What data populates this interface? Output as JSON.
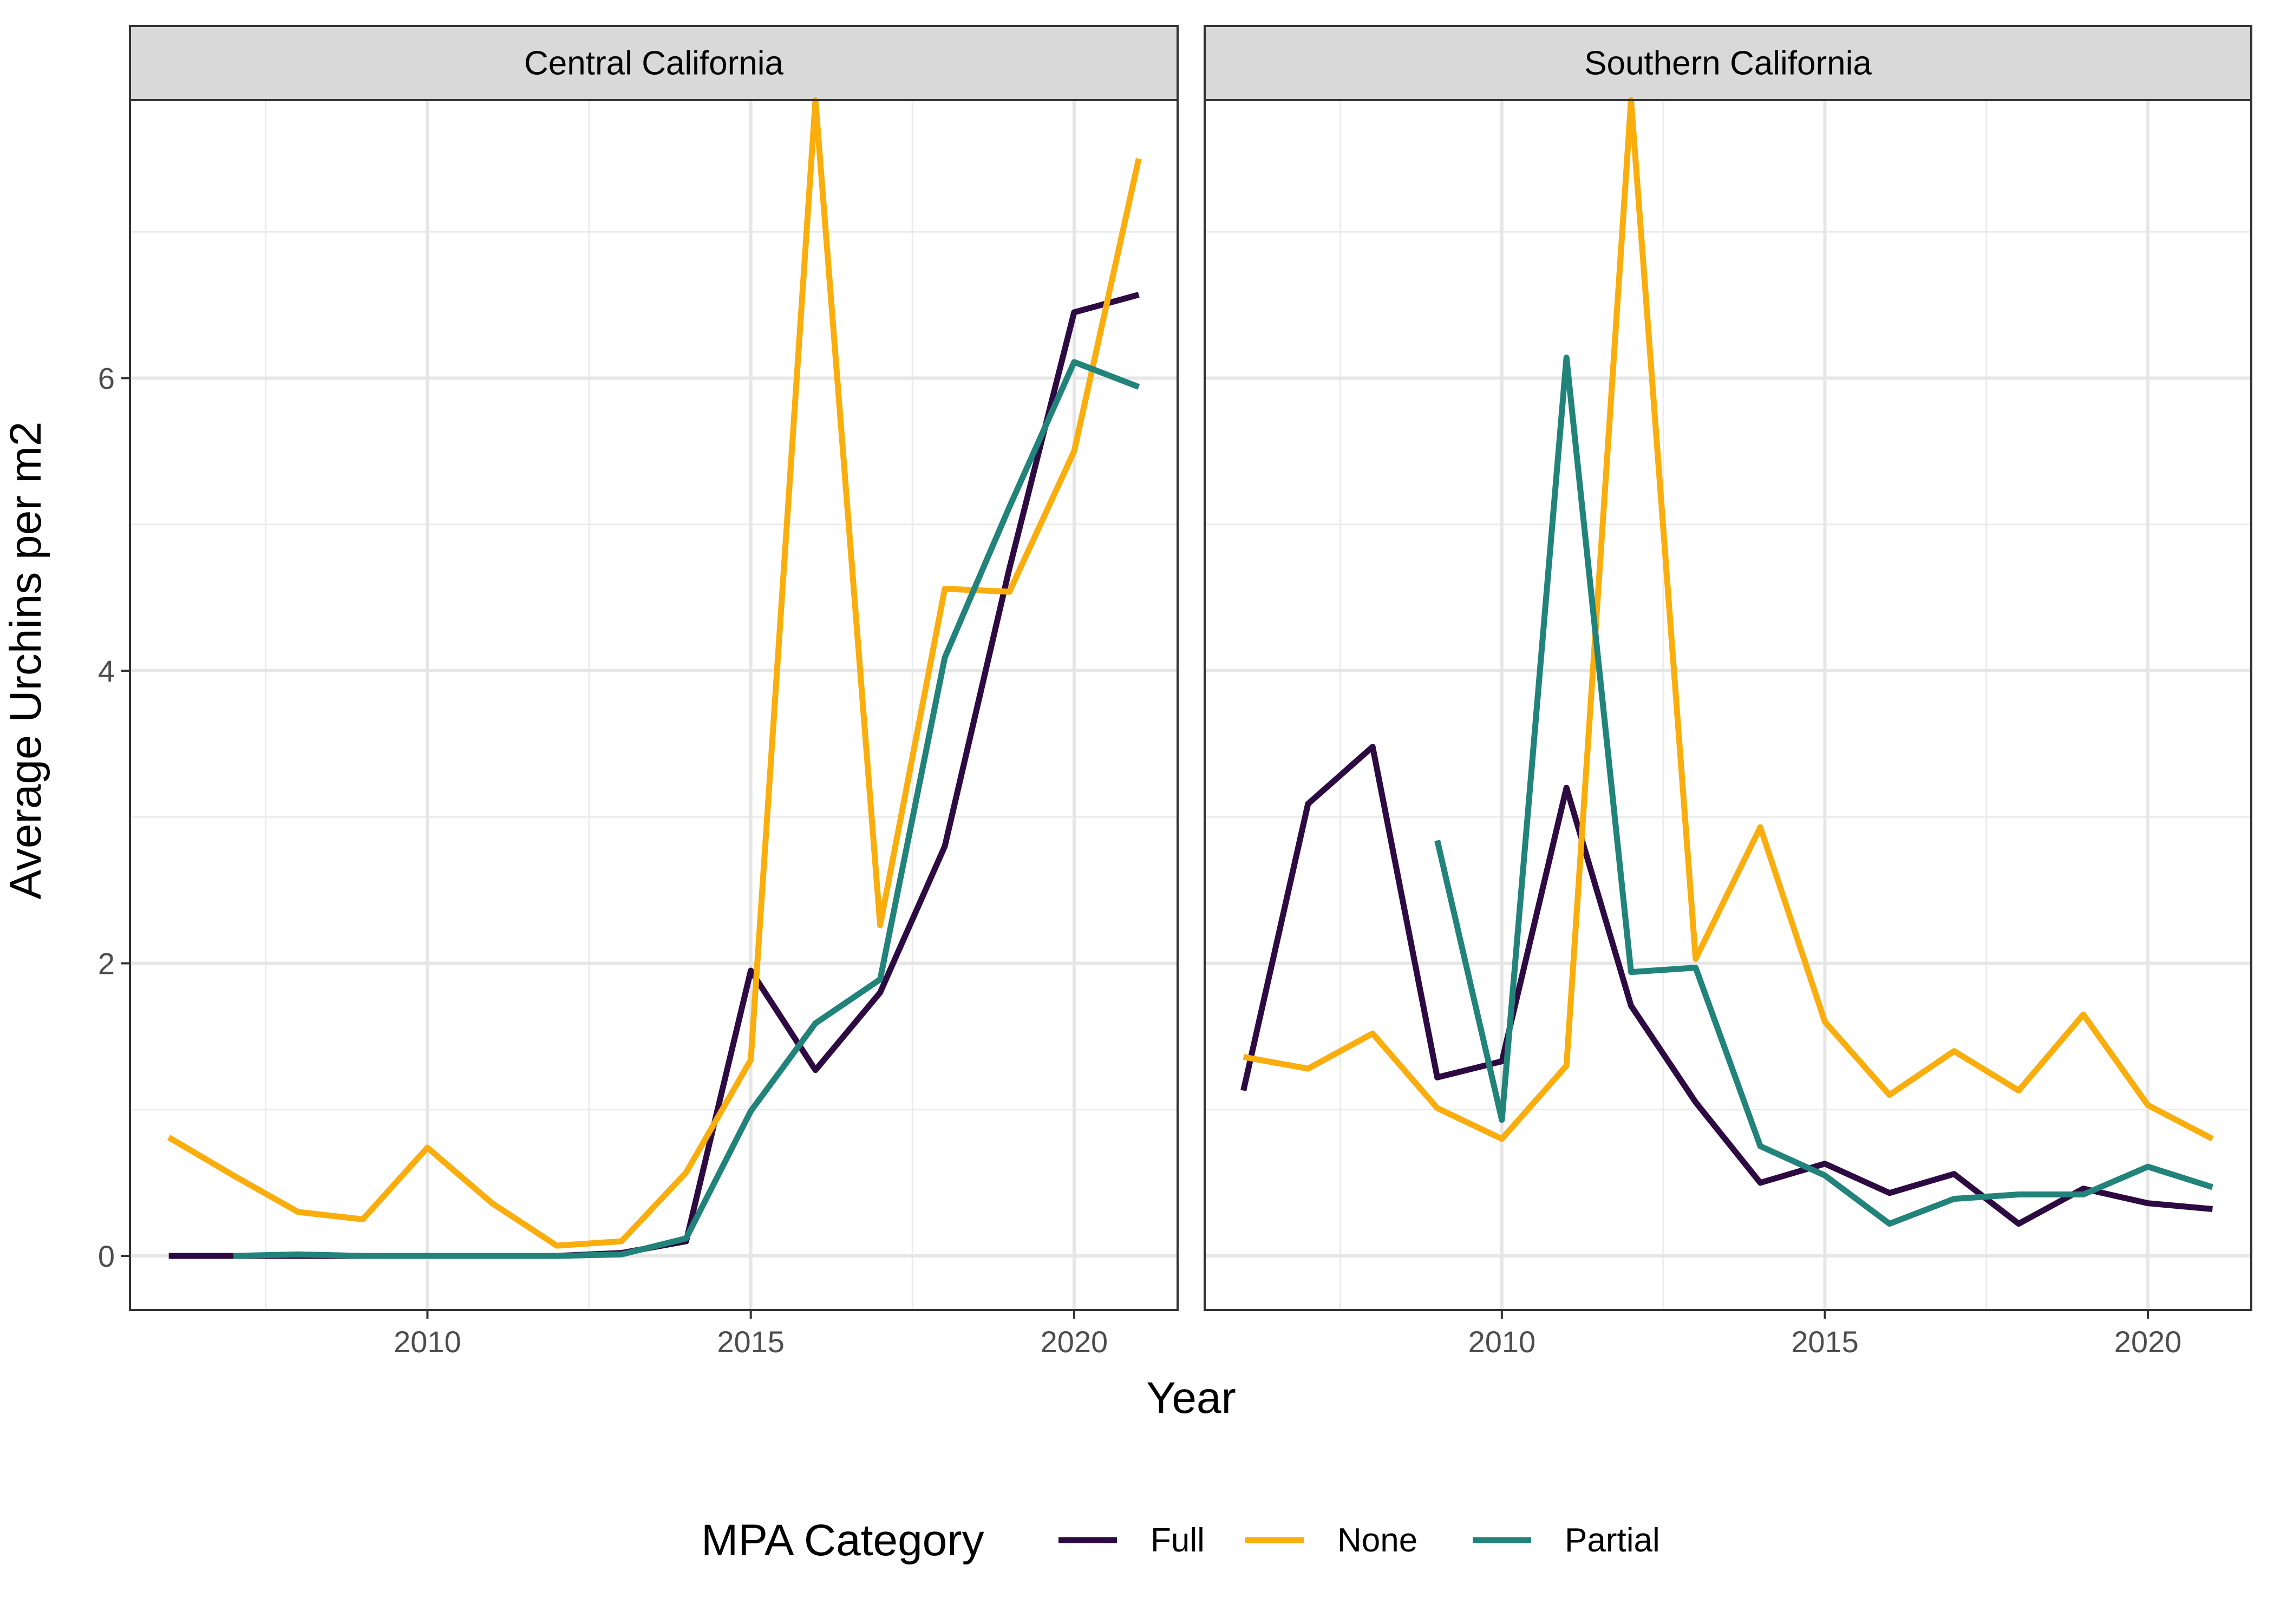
{
  "chart_data": {
    "type": "line",
    "xlabel": "Year",
    "ylabel": "Average Urchins per m2",
    "xlim": [
      2005.4,
      2021.6
    ],
    "ylim": [
      -0.37,
      7.9
    ],
    "x_ticks": [
      2010,
      2015,
      2020
    ],
    "y_ticks": [
      0,
      2,
      4,
      6
    ],
    "grid": true,
    "legend": {
      "title": "MPA Category",
      "position": "bottom",
      "entries": [
        "Full",
        "None",
        "Partial"
      ]
    },
    "colors": {
      "Full": "#2d0a42",
      "None": "#f9ae0d",
      "Partial": "#21837a"
    },
    "panels": [
      {
        "title": "Central California",
        "series": [
          {
            "name": "Full",
            "x": [
              2006,
              2007,
              2008,
              2009,
              2010,
              2011,
              2012,
              2013,
              2014,
              2015,
              2016,
              2017,
              2018,
              2019,
              2020,
              2021
            ],
            "y": [
              0.0,
              0.0,
              0.0,
              0.0,
              0.0,
              0.0,
              0.0,
              0.02,
              0.1,
              1.95,
              1.27,
              1.8,
              2.8,
              4.7,
              6.45,
              6.57
            ]
          },
          {
            "name": "None",
            "x": [
              2006,
              2007,
              2008,
              2009,
              2010,
              2011,
              2012,
              2013,
              2014,
              2015,
              2016,
              2017,
              2018,
              2019,
              2020,
              2021
            ],
            "y": [
              0.81,
              0.55,
              0.3,
              0.25,
              0.74,
              0.36,
              0.07,
              0.1,
              0.57,
              1.34,
              7.9,
              2.26,
              4.56,
              4.54,
              5.5,
              7.5
            ]
          },
          {
            "name": "Partial",
            "x": [
              2007,
              2008,
              2009,
              2010,
              2011,
              2012,
              2013,
              2014,
              2015,
              2016,
              2017,
              2018,
              2019,
              2020,
              2021
            ],
            "y": [
              0.0,
              0.01,
              0.0,
              0.0,
              0.0,
              0.0,
              0.01,
              0.12,
              0.99,
              1.59,
              1.89,
              4.09,
              5.12,
              6.11,
              5.94
            ]
          }
        ]
      },
      {
        "title": "Southern California",
        "series": [
          {
            "name": "Full",
            "x": [
              2006,
              2007,
              2008,
              2009,
              2010,
              2011,
              2012,
              2013,
              2014,
              2015,
              2016,
              2017,
              2018,
              2019,
              2020,
              2021
            ],
            "y": [
              1.13,
              3.09,
              3.48,
              1.22,
              1.33,
              3.2,
              1.71,
              1.05,
              0.5,
              0.63,
              0.43,
              0.56,
              0.22,
              0.46,
              0.36,
              0.32
            ]
          },
          {
            "name": "None",
            "x": [
              2006,
              2007,
              2008,
              2009,
              2010,
              2011,
              2012,
              2013,
              2014,
              2015,
              2016,
              2017,
              2018,
              2019,
              2020,
              2021
            ],
            "y": [
              1.36,
              1.28,
              1.52,
              1.01,
              0.8,
              1.3,
              7.9,
              2.03,
              2.93,
              1.6,
              1.1,
              1.4,
              1.13,
              1.65,
              1.03,
              0.8
            ]
          },
          {
            "name": "Partial",
            "x": [
              2009,
              2010,
              2011,
              2012,
              2013,
              2014,
              2015,
              2016,
              2017,
              2018,
              2019,
              2020,
              2021
            ],
            "y": [
              2.84,
              0.93,
              6.14,
              1.94,
              1.97,
              0.75,
              0.55,
              0.22,
              0.39,
              0.42,
              0.42,
              0.61,
              0.47
            ]
          }
        ]
      }
    ]
  }
}
